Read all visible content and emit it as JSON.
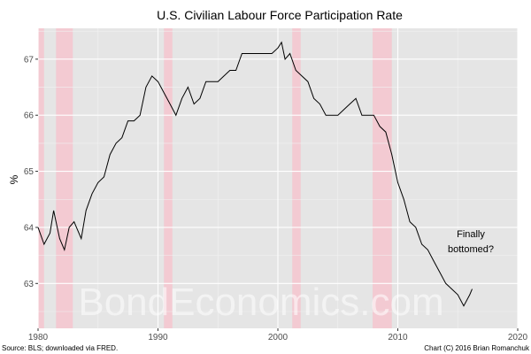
{
  "chart_data": {
    "type": "line",
    "title": "U.S. Civilian Labour Force Participation Rate",
    "xlabel": "",
    "ylabel": "%",
    "xlim": [
      1980,
      2020
    ],
    "ylim": [
      62.2,
      67.55
    ],
    "x_ticks": [
      1980,
      1990,
      2000,
      2010,
      2020
    ],
    "y_ticks": [
      63,
      64,
      65,
      66,
      67
    ],
    "grid": true,
    "panel_color": "#e5e5e5",
    "line_color": "#000000",
    "recession_color": "#f4c6cf",
    "recessions": [
      {
        "start": 1980.0,
        "end": 1980.5
      },
      {
        "start": 1981.5,
        "end": 1982.9
      },
      {
        "start": 1990.5,
        "end": 1991.2
      },
      {
        "start": 2001.2,
        "end": 2001.9
      },
      {
        "start": 2007.9,
        "end": 2009.5
      }
    ],
    "series": [
      {
        "x": [
          1980.0,
          1980.5,
          1981.0,
          1981.3,
          1981.8,
          1982.2,
          1982.6,
          1983.0,
          1983.6,
          1984.0,
          1984.5,
          1985.0,
          1985.5,
          1986.0,
          1986.5,
          1987.0,
          1987.5,
          1988.0,
          1988.5,
          1989.0,
          1989.5,
          1990.0,
          1990.5,
          1991.0,
          1991.5,
          1992.0,
          1992.5,
          1993.0,
          1993.5,
          1994.0,
          1994.5,
          1995.0,
          1995.5,
          1996.0,
          1996.5,
          1997.0,
          1997.5,
          1998.0,
          1998.5,
          1999.0,
          1999.5,
          2000.0,
          2000.3,
          2000.6,
          2001.0,
          2001.5,
          2002.0,
          2002.5,
          2003.0,
          2003.5,
          2004.0,
          2004.5,
          2005.0,
          2005.5,
          2006.0,
          2006.5,
          2007.0,
          2007.5,
          2008.0,
          2008.5,
          2009.0,
          2009.5,
          2010.0,
          2010.5,
          2011.0,
          2011.5,
          2012.0,
          2012.5,
          2013.0,
          2013.5,
          2014.0,
          2014.5,
          2015.0,
          2015.5,
          2016.0,
          2016.2
        ],
        "values": [
          64.0,
          63.7,
          63.9,
          64.3,
          63.8,
          63.6,
          64.0,
          64.1,
          63.8,
          64.3,
          64.6,
          64.8,
          64.9,
          65.3,
          65.5,
          65.6,
          65.9,
          65.9,
          66.0,
          66.5,
          66.7,
          66.6,
          66.4,
          66.2,
          66.0,
          66.3,
          66.5,
          66.2,
          66.3,
          66.6,
          66.6,
          66.6,
          66.7,
          66.8,
          66.8,
          67.1,
          67.1,
          67.1,
          67.1,
          67.1,
          67.1,
          67.2,
          67.3,
          67.0,
          67.1,
          66.8,
          66.7,
          66.6,
          66.3,
          66.2,
          66.0,
          66.0,
          66.0,
          66.1,
          66.2,
          66.3,
          66.0,
          66.0,
          66.0,
          65.8,
          65.7,
          65.3,
          64.8,
          64.5,
          64.1,
          64.0,
          63.7,
          63.6,
          63.4,
          63.2,
          63.0,
          62.9,
          62.8,
          62.6,
          62.8,
          62.9
        ]
      }
    ],
    "annotations": [
      "Finally",
      "bottomed?"
    ],
    "watermark": "BondEconomics.com",
    "source": "Source: BLS; downloaded via FRED.",
    "credit": "Chart (C) 2016 Brian Romanchuk"
  }
}
